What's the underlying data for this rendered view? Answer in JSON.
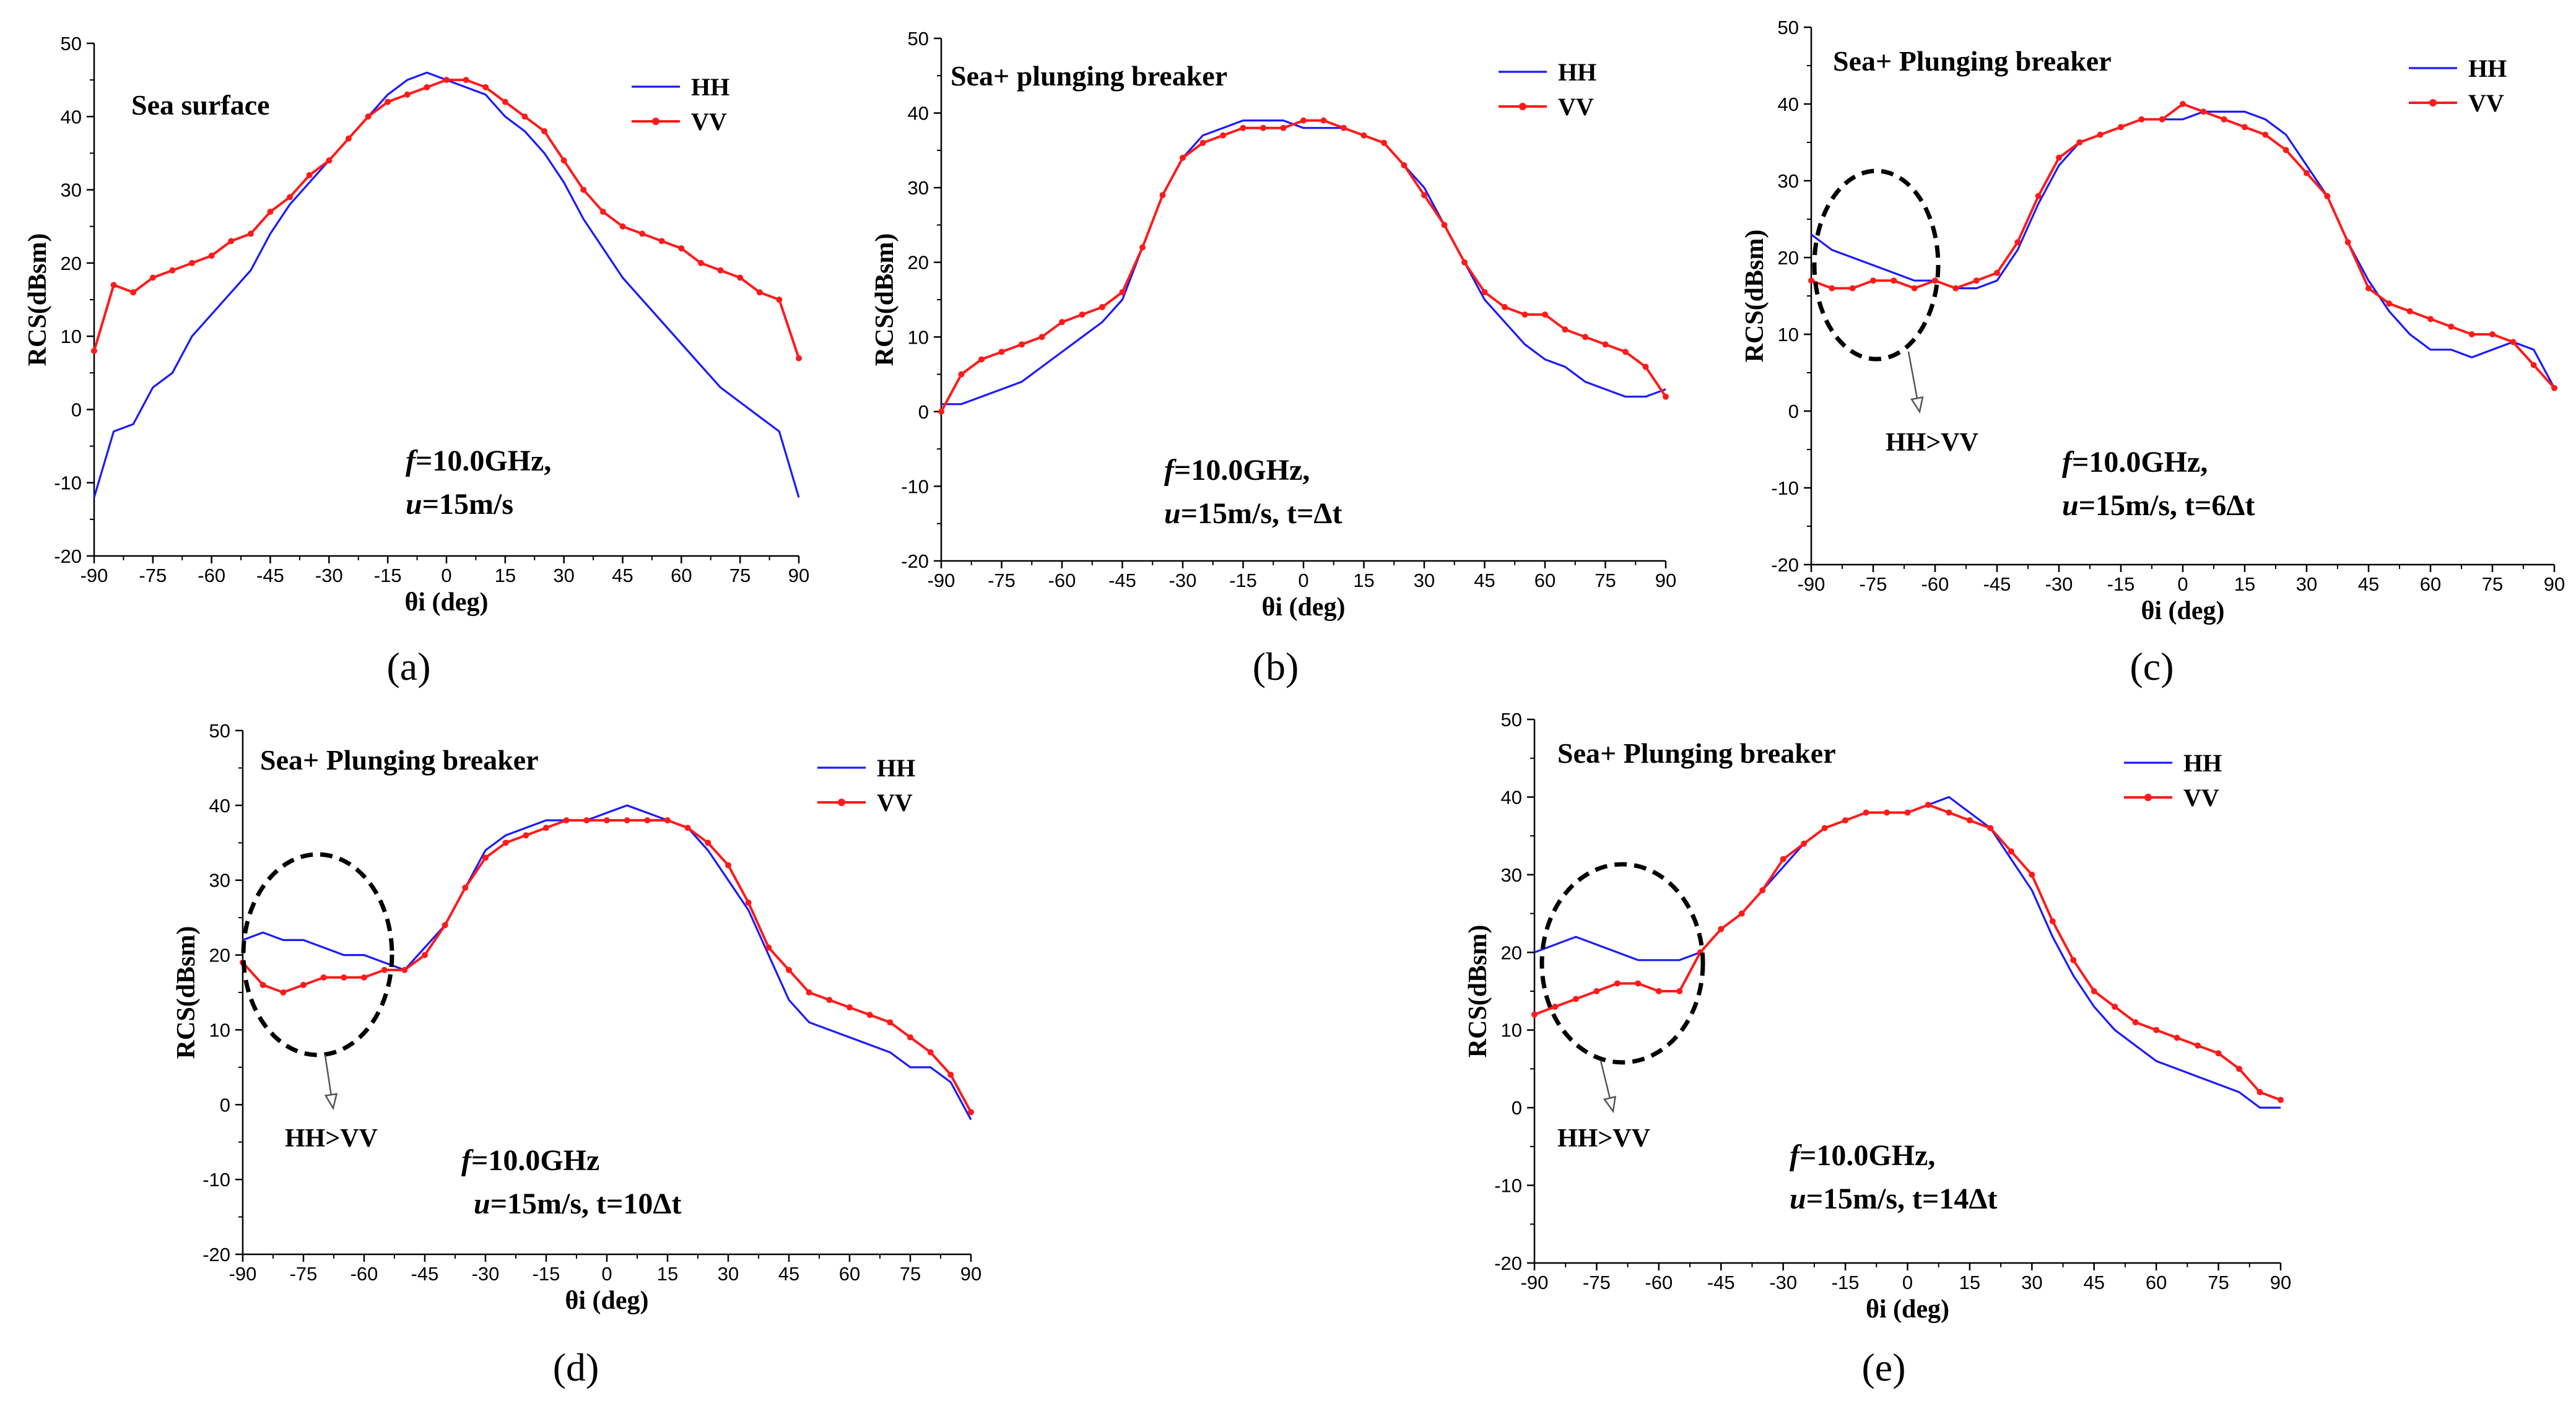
{
  "colors": {
    "hh": "#1a1aff",
    "vv": "#ff1a1a",
    "axis": "#000000"
  },
  "chart_data": [
    {
      "type": "line",
      "panel": "(a)",
      "title": "Sea surface",
      "xlabel": "θi (deg)",
      "ylabel": "RCS(dBsm)",
      "xlim": [
        -90,
        90
      ],
      "ylim": [
        -20,
        50
      ],
      "xticks": [
        -90,
        -75,
        -60,
        -45,
        -30,
        -15,
        0,
        15,
        30,
        45,
        60,
        75,
        90
      ],
      "yticks": [
        -20,
        -10,
        0,
        10,
        20,
        30,
        40,
        50
      ],
      "legend": [
        "HH",
        "VV"
      ],
      "annotation": {
        "line1_italic": "f",
        "line1_rest": "=10.0GHz,",
        "line2_italic": "u",
        "line2_rest": "=15m/s"
      },
      "x": [
        -90,
        -85,
        -80,
        -75,
        -70,
        -65,
        -60,
        -55,
        -50,
        -45,
        -40,
        -35,
        -30,
        -25,
        -20,
        -15,
        -10,
        -5,
        0,
        5,
        10,
        15,
        20,
        25,
        30,
        35,
        40,
        45,
        50,
        55,
        60,
        65,
        70,
        75,
        80,
        85,
        90
      ],
      "series": [
        {
          "name": "HH",
          "values": [
            -12,
            -3,
            -2,
            3,
            5,
            10,
            13,
            16,
            19,
            24,
            28,
            31,
            34,
            37,
            40,
            43,
            45,
            46,
            45,
            44,
            43,
            40,
            38,
            35,
            31,
            26,
            22,
            18,
            15,
            12,
            9,
            6,
            3,
            1,
            -1,
            -3,
            -12
          ]
        },
        {
          "name": "VV",
          "values": [
            8,
            17,
            16,
            18,
            19,
            20,
            21,
            23,
            24,
            27,
            29,
            32,
            34,
            37,
            40,
            42,
            43,
            44,
            45,
            45,
            44,
            42,
            40,
            38,
            34,
            30,
            27,
            25,
            24,
            23,
            22,
            20,
            19,
            18,
            16,
            15,
            7
          ]
        }
      ]
    },
    {
      "type": "line",
      "panel": "(b)",
      "title": "Sea+ plunging breaker",
      "xlabel": "θi (deg)",
      "ylabel": "RCS(dBsm)",
      "xlim": [
        -90,
        90
      ],
      "ylim": [
        -20,
        50
      ],
      "xticks": [
        -90,
        -75,
        -60,
        -45,
        -30,
        -15,
        0,
        15,
        30,
        45,
        60,
        75,
        90
      ],
      "yticks": [
        -20,
        -10,
        0,
        10,
        20,
        30,
        40,
        50
      ],
      "legend": [
        "HH",
        "VV"
      ],
      "annotation": {
        "line1_italic": "f",
        "line1_rest": "=10.0GHz,",
        "line2_italic": "u",
        "line2_rest": "=15m/s, t=Δt"
      },
      "x": [
        -90,
        -85,
        -80,
        -75,
        -70,
        -65,
        -60,
        -55,
        -50,
        -45,
        -40,
        -35,
        -30,
        -25,
        -20,
        -15,
        -10,
        -5,
        0,
        5,
        10,
        15,
        20,
        25,
        30,
        35,
        40,
        45,
        50,
        55,
        60,
        65,
        70,
        75,
        80,
        85,
        90
      ],
      "series": [
        {
          "name": "HH",
          "values": [
            1,
            1,
            2,
            3,
            4,
            6,
            8,
            10,
            12,
            15,
            22,
            29,
            34,
            37,
            38,
            39,
            39,
            39,
            38,
            38,
            38,
            37,
            36,
            33,
            30,
            25,
            20,
            15,
            12,
            9,
            7,
            6,
            4,
            3,
            2,
            2,
            3
          ]
        },
        {
          "name": "VV",
          "values": [
            0,
            5,
            7,
            8,
            9,
            10,
            12,
            13,
            14,
            16,
            22,
            29,
            34,
            36,
            37,
            38,
            38,
            38,
            39,
            39,
            38,
            37,
            36,
            33,
            29,
            25,
            20,
            16,
            14,
            13,
            13,
            11,
            10,
            9,
            8,
            6,
            2
          ]
        }
      ]
    },
    {
      "type": "line",
      "panel": "(c)",
      "title": "Sea+ Plunging breaker",
      "xlabel": "θi (deg)",
      "ylabel": "RCS(dBsm)",
      "xlim": [
        -90,
        90
      ],
      "ylim": [
        -20,
        50
      ],
      "xticks": [
        -90,
        -75,
        -60,
        -45,
        -30,
        -15,
        0,
        15,
        30,
        45,
        60,
        75,
        90
      ],
      "yticks": [
        -20,
        -10,
        0,
        10,
        20,
        30,
        40,
        50
      ],
      "legend": [
        "HH",
        "VV"
      ],
      "callout": "HH>VV",
      "annotation": {
        "line1_italic": "f",
        "line1_rest": "=10.0GHz,",
        "line2_italic": "u",
        "line2_rest": "=15m/s, t=6Δt"
      },
      "x": [
        -90,
        -85,
        -80,
        -75,
        -70,
        -65,
        -60,
        -55,
        -50,
        -45,
        -40,
        -35,
        -30,
        -25,
        -20,
        -15,
        -10,
        -5,
        0,
        5,
        10,
        15,
        20,
        25,
        30,
        35,
        40,
        45,
        50,
        55,
        60,
        65,
        70,
        75,
        80,
        85,
        90
      ],
      "series": [
        {
          "name": "HH",
          "values": [
            23,
            21,
            20,
            19,
            18,
            17,
            17,
            16,
            16,
            17,
            21,
            27,
            32,
            35,
            36,
            37,
            38,
            38,
            38,
            39,
            39,
            39,
            38,
            36,
            32,
            28,
            22,
            17,
            13,
            10,
            8,
            8,
            7,
            8,
            9,
            8,
            3
          ]
        },
        {
          "name": "VV",
          "values": [
            17,
            16,
            16,
            17,
            17,
            16,
            17,
            16,
            17,
            18,
            22,
            28,
            33,
            35,
            36,
            37,
            38,
            38,
            40,
            39,
            38,
            37,
            36,
            34,
            31,
            28,
            22,
            16,
            14,
            13,
            12,
            11,
            10,
            10,
            9,
            6,
            3
          ]
        }
      ]
    },
    {
      "type": "line",
      "panel": "(d)",
      "title": "Sea+ Plunging breaker",
      "xlabel": "θi (deg)",
      "ylabel": "RCS(dBsm)",
      "xlim": [
        -90,
        90
      ],
      "ylim": [
        -20,
        50
      ],
      "xticks": [
        -90,
        -75,
        -60,
        -45,
        -30,
        -15,
        0,
        15,
        30,
        45,
        60,
        75,
        90
      ],
      "yticks": [
        -20,
        -10,
        0,
        10,
        20,
        30,
        40,
        50
      ],
      "legend": [
        "HH",
        "VV"
      ],
      "callout": "HH>VV",
      "annotation": {
        "line1_italic": "f",
        "line1_rest": "=10.0GHz",
        "line2_italic": "u",
        "line2_rest": "=15m/s, t=10Δt"
      },
      "x": [
        -90,
        -85,
        -80,
        -75,
        -70,
        -65,
        -60,
        -55,
        -50,
        -45,
        -40,
        -35,
        -30,
        -25,
        -20,
        -15,
        -10,
        -5,
        0,
        5,
        10,
        15,
        20,
        25,
        30,
        35,
        40,
        45,
        50,
        55,
        60,
        65,
        70,
        75,
        80,
        85,
        90
      ],
      "series": [
        {
          "name": "HH",
          "values": [
            22,
            23,
            22,
            22,
            21,
            20,
            20,
            19,
            18,
            21,
            24,
            29,
            34,
            36,
            37,
            38,
            38,
            38,
            39,
            40,
            39,
            38,
            37,
            34,
            30,
            26,
            20,
            14,
            11,
            10,
            9,
            8,
            7,
            5,
            5,
            3,
            -2
          ]
        },
        {
          "name": "VV",
          "values": [
            19,
            16,
            15,
            16,
            17,
            17,
            17,
            18,
            18,
            20,
            24,
            29,
            33,
            35,
            36,
            37,
            38,
            38,
            38,
            38,
            38,
            38,
            37,
            35,
            32,
            27,
            21,
            18,
            15,
            14,
            13,
            12,
            11,
            9,
            7,
            4,
            -1
          ]
        }
      ]
    },
    {
      "type": "line",
      "panel": "(e)",
      "title": "Sea+ Plunging breaker",
      "xlabel": "θi (deg)",
      "ylabel": "RCS(dBsm)",
      "xlim": [
        -90,
        90
      ],
      "ylim": [
        -20,
        50
      ],
      "xticks": [
        -90,
        -75,
        -60,
        -45,
        -30,
        -15,
        0,
        15,
        30,
        45,
        60,
        75,
        90
      ],
      "yticks": [
        -20,
        -10,
        0,
        10,
        20,
        30,
        40,
        50
      ],
      "legend": [
        "HH",
        "VV"
      ],
      "callout": "HH>VV",
      "annotation": {
        "line1_italic": "f",
        "line1_rest": "=10.0GHz,",
        "line2_italic": "u",
        "line2_rest": "=15m/s, t=14Δt"
      },
      "x": [
        -90,
        -85,
        -80,
        -75,
        -70,
        -65,
        -60,
        -55,
        -50,
        -45,
        -40,
        -35,
        -30,
        -25,
        -20,
        -15,
        -10,
        -5,
        0,
        5,
        10,
        15,
        20,
        25,
        30,
        35,
        40,
        45,
        50,
        55,
        60,
        65,
        70,
        75,
        80,
        85,
        90
      ],
      "series": [
        {
          "name": "HH",
          "values": [
            20,
            21,
            22,
            21,
            20,
            19,
            19,
            19,
            20,
            23,
            25,
            28,
            31,
            34,
            36,
            37,
            38,
            38,
            38,
            39,
            40,
            38,
            36,
            32,
            28,
            22,
            17,
            13,
            10,
            8,
            6,
            5,
            4,
            3,
            2,
            0,
            0
          ]
        },
        {
          "name": "VV",
          "values": [
            12,
            13,
            14,
            15,
            16,
            16,
            15,
            15,
            20,
            23,
            25,
            28,
            32,
            34,
            36,
            37,
            38,
            38,
            38,
            39,
            38,
            37,
            36,
            33,
            30,
            24,
            19,
            15,
            13,
            11,
            10,
            9,
            8,
            7,
            5,
            2,
            1
          ]
        }
      ]
    }
  ]
}
